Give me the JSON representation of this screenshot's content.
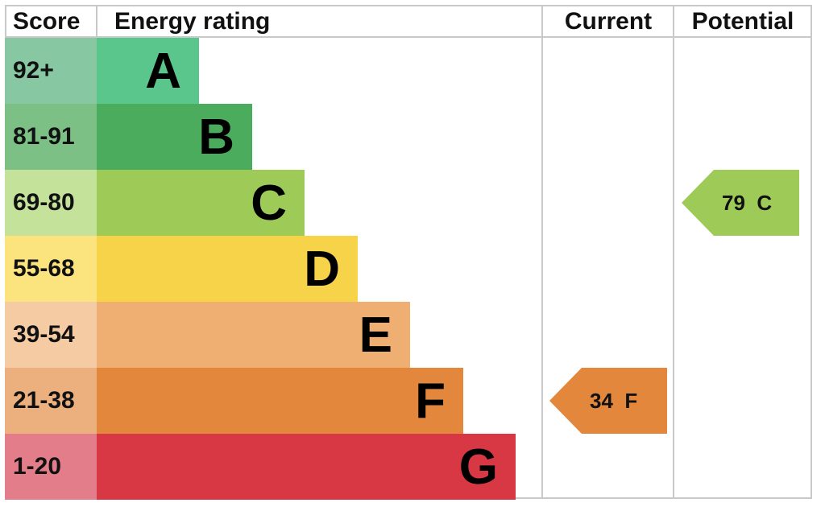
{
  "headers": {
    "score": "Score",
    "energy_rating": "Energy rating",
    "current": "Current",
    "potential": "Potential"
  },
  "chart_data": {
    "type": "bar",
    "categories": [
      "A",
      "B",
      "C",
      "D",
      "E",
      "F",
      "G"
    ],
    "score_ranges": [
      "92+",
      "81-91",
      "69-80",
      "55-68",
      "39-54",
      "21-38",
      "1-20"
    ],
    "bar_colors": [
      "#5ac68b",
      "#4bac5e",
      "#9ecb58",
      "#f7d34a",
      "#efaf72",
      "#e2873c",
      "#d83843"
    ],
    "score_colors": [
      "#87c8a2",
      "#7cc086",
      "#c4e29a",
      "#fbe37e",
      "#f5cba4",
      "#ebb07e",
      "#e47d8a"
    ],
    "current": {
      "value": 34,
      "band": "F",
      "label": "34  F",
      "color": "#e2873c"
    },
    "potential": {
      "value": 79,
      "band": "C",
      "label": "79  C",
      "color": "#9ecb58"
    }
  }
}
